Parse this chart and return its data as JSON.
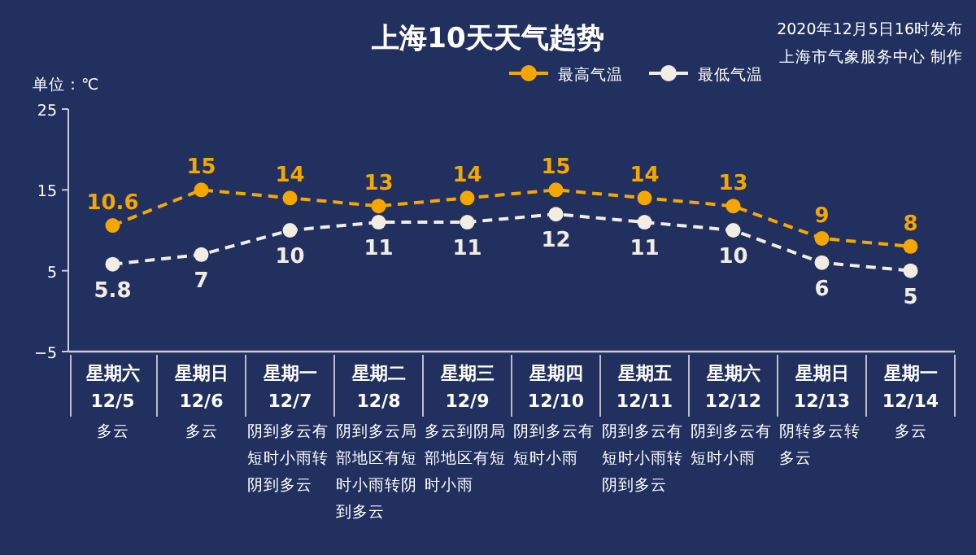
{
  "chart_data": {
    "type": "line",
    "title": "上海10天天气趋势",
    "ylabel": "单位：℃",
    "annotations": [
      "2020年12月5日16时发布",
      "上海市气象服务中心 制作"
    ],
    "categories": [
      "星期六\n12/5\n多云",
      "星期日\n12/6\n多云",
      "星期一\n12/7\n阴到多云有短时小雨转阴到多云",
      "星期二\n12/8\n阴到多云局部地区有短时小雨转阴到多云",
      "星期三\n12/9\n多云到阴局部地区有短时小雨",
      "星期四\n12/10\n阴到多云有短时小雨",
      "星期五\n12/11\n阴到多云有短时小雨转阴到多云",
      "星期六\n12/12\n阴到多云有短时小雨",
      "星期日\n12/13\n阴转多云转多云",
      "星期一\n12/14\n多云"
    ],
    "series": [
      {
        "name": "最高气温",
        "color": "#f5a700",
        "values": [
          10.6,
          15,
          14,
          13,
          14,
          15,
          14,
          13,
          9,
          8
        ]
      },
      {
        "name": "最低气温",
        "color": "#f2ede3",
        "values": [
          5.8,
          7,
          10,
          11,
          11,
          12,
          11,
          10,
          6,
          5
        ]
      }
    ],
    "ylim": [
      -5,
      25
    ],
    "yticks": [
      -5,
      5,
      15,
      25
    ],
    "data_labels": true,
    "legend": "top",
    "grid": false,
    "marker": "circle",
    "line_style": "dashed"
  }
}
